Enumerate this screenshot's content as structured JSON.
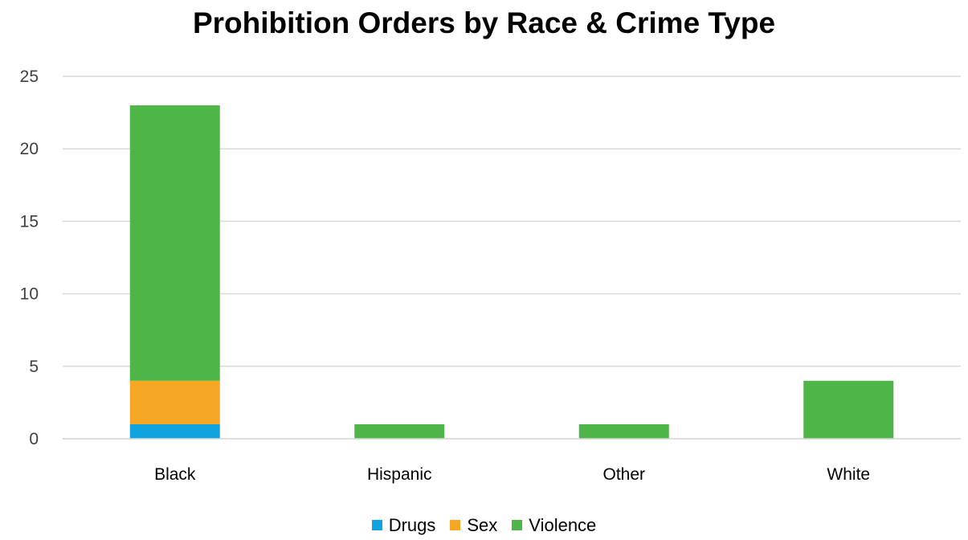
{
  "chart_data": {
    "type": "bar",
    "stacked": true,
    "title": "Prohibition Orders by Race & Crime Type",
    "xlabel": "",
    "ylabel": "",
    "categories": [
      "Black",
      "Hispanic",
      "Other",
      "White"
    ],
    "series": [
      {
        "name": "Drugs",
        "color": "#0fa3e0",
        "values": [
          1,
          0,
          0,
          0
        ]
      },
      {
        "name": "Sex",
        "color": "#f5a623",
        "values": [
          3,
          0,
          0,
          0
        ]
      },
      {
        "name": "Violence",
        "color": "#4fb548",
        "values": [
          19,
          1,
          1,
          4
        ]
      }
    ],
    "ylim": [
      0,
      25
    ],
    "yticks": [
      0,
      5,
      10,
      15,
      20,
      25
    ],
    "grid": true,
    "legend_position": "bottom"
  }
}
